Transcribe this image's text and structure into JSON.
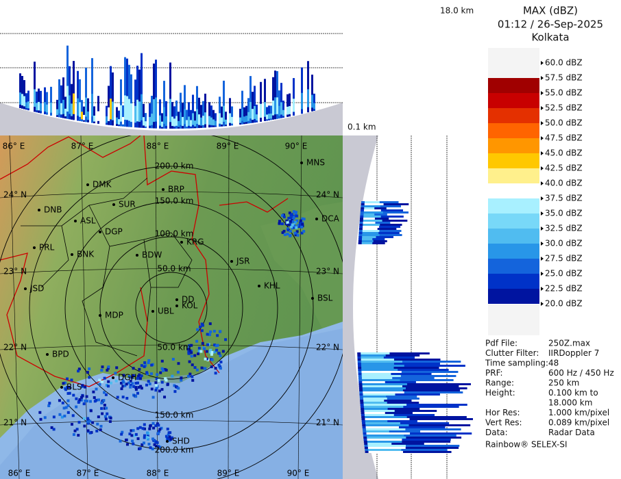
{
  "header": {
    "title": "MAX (dBZ)",
    "time": "01:12 / 26-Sep-2025",
    "station": "Kolkata"
  },
  "top_panel": {
    "height_label": "18.0 km"
  },
  "side_panel": {
    "height_label": "0.1 km"
  },
  "map": {
    "lon_labels": [
      "86° E",
      "87° E",
      "88° E",
      "89° E",
      "90° E"
    ],
    "lat_labels": [
      "24° N",
      "23° N",
      "22° N",
      "21° N"
    ],
    "range_labels_north": [
      "200.0 km",
      "150.0 km",
      "100.0 km",
      "50.0 km"
    ],
    "range_labels_south": [
      "50.0 km",
      "150.0 km",
      "200.0 km"
    ],
    "cities": [
      "MNS",
      "DMK",
      "BRP",
      "DNB",
      "SUR",
      "ASL",
      "DGP",
      "DCA",
      "KRG",
      "PRL",
      "BNK",
      "BDW",
      "JSR",
      "JSD",
      "KHL",
      "DD",
      "BSL",
      "MDP",
      "UBL",
      "KOL",
      "BPD",
      "DGH",
      "BLS",
      "SHD"
    ]
  },
  "legend": {
    "levels": [
      "60.0 dBZ",
      "57.5 dBZ",
      "55.0 dBZ",
      "52.5 dBZ",
      "50.0 dBZ",
      "47.5 dBZ",
      "45.0 dBZ",
      "42.5 dBZ",
      "40.0 dBZ",
      "37.5 dBZ",
      "35.0 dBZ",
      "32.5 dBZ",
      "30.0 dBZ",
      "27.5 dBZ",
      "25.0 dBZ",
      "22.5 dBZ",
      "20.0 dBZ"
    ],
    "colors": [
      "#f4f4f4",
      "#a00000",
      "#c80000",
      "#e43000",
      "#ff6400",
      "#ff9600",
      "#ffc800",
      "#fff08c",
      "#ffffff",
      "#a8f0ff",
      "#78d8f8",
      "#50bcf0",
      "#2896e8",
      "#1464dc",
      "#0032c8",
      "#0014a0"
    ]
  },
  "info": {
    "rows": [
      {
        "label": "Pdf File:",
        "value": [
          "250Z.max"
        ]
      },
      {
        "label": "Clutter Filter:",
        "value": [
          "IIRDoppler 7"
        ]
      },
      {
        "label": "Time sampling:",
        "value": [
          "48"
        ]
      },
      {
        "label": "PRF:",
        "value": [
          "600 Hz / 450 Hz"
        ]
      },
      {
        "label": "Range:",
        "value": [
          "250 km"
        ]
      },
      {
        "label": "Height:",
        "value": [
          "0.100 km to",
          "18.000 km"
        ]
      },
      {
        "label": "Hor Res:",
        "value": [
          "1.000 km/pixel"
        ]
      },
      {
        "label": "Vert Res:",
        "value": [
          "0.089 km/pixel"
        ]
      },
      {
        "label": "Data:",
        "value": [
          "Radar Data"
        ]
      }
    ],
    "footer": "Rainbow® SELEX-SI"
  }
}
